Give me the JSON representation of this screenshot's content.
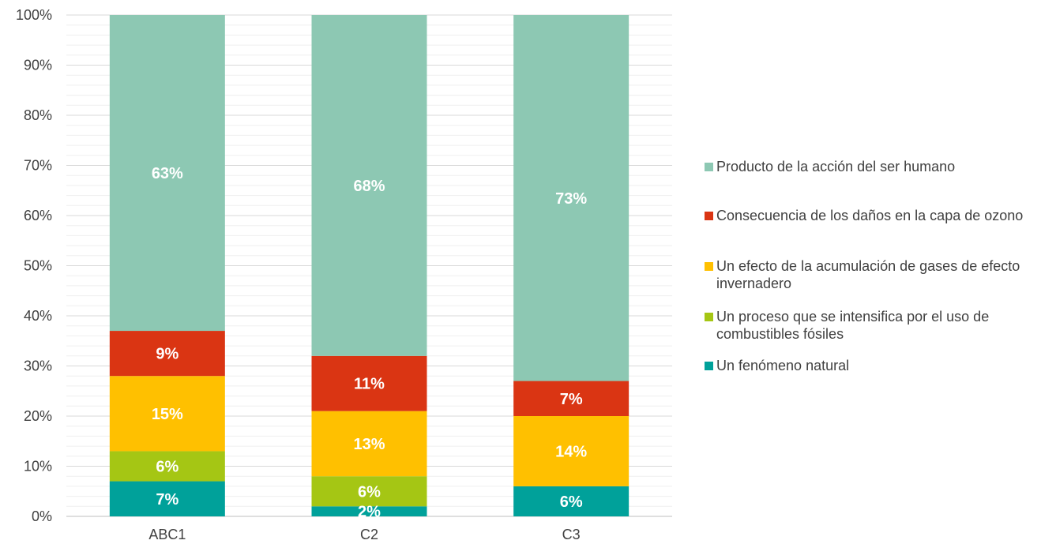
{
  "chart_data": {
    "type": "bar",
    "stacked": true,
    "percent": true,
    "categories": [
      "ABC1",
      "C2",
      "C3"
    ],
    "series": [
      {
        "name": "Un fenómeno natural",
        "color": "#00A19A",
        "values": [
          7,
          2,
          6
        ]
      },
      {
        "name": "Un proceso que se intensifica por el uso de combustibles fósiles",
        "color": "#A5C614",
        "values": [
          6,
          6,
          0
        ]
      },
      {
        "name": "Un efecto de la acumulación de gases de efecto invernadero",
        "color": "#FFC000",
        "values": [
          15,
          13,
          14
        ]
      },
      {
        "name": "Consecuencia de los daños en la capa de ozono",
        "color": "#DA3513",
        "values": [
          9,
          11,
          7
        ]
      },
      {
        "name": "Producto de la acción del ser humano",
        "color": "#8DC8B3",
        "values": [
          63,
          68,
          73
        ]
      }
    ],
    "labels": [
      [
        "7%",
        "2%",
        "6%"
      ],
      [
        "6%",
        "6%",
        ""
      ],
      [
        "15%",
        "13%",
        "14%"
      ],
      [
        "9%",
        "11%",
        "7%"
      ],
      [
        "63%",
        "68%",
        "73%"
      ]
    ],
    "y_ticks": [
      "0%",
      "10%",
      "20%",
      "30%",
      "40%",
      "50%",
      "60%",
      "70%",
      "80%",
      "90%",
      "100%"
    ],
    "ylim": [
      0,
      100
    ],
    "grid": true,
    "legend_position": "right",
    "legend_order": [
      4,
      3,
      2,
      1,
      0
    ]
  }
}
